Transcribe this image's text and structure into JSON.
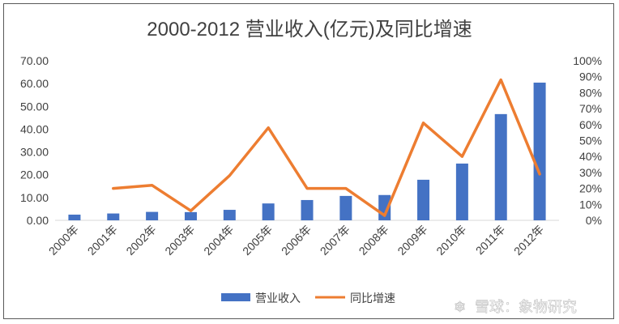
{
  "chart_data": {
    "type": "bar",
    "title": "2000-2012 营业收入(亿元)及同比增速",
    "categories": [
      "2000年",
      "2001年",
      "2002年",
      "2003年",
      "2004年",
      "2005年",
      "2006年",
      "2007年",
      "2008年",
      "2009年",
      "2010年",
      "2011年",
      "2012年"
    ],
    "series": [
      {
        "name": "营业收入",
        "type": "bar",
        "axis": "left",
        "color": "#4472C4",
        "values": [
          2.5,
          3.0,
          3.7,
          3.6,
          4.6,
          7.4,
          8.9,
          10.7,
          11.1,
          17.8,
          24.9,
          46.6,
          60.4
        ]
      },
      {
        "name": "同比增速",
        "type": "line",
        "axis": "right",
        "color": "#ED7D31",
        "values": [
          null,
          0.2,
          0.22,
          0.06,
          0.28,
          0.58,
          0.2,
          0.2,
          0.03,
          0.61,
          0.4,
          0.88,
          0.29
        ]
      }
    ],
    "y_left": {
      "ylim": [
        0,
        70
      ],
      "ticks": [
        "0.00",
        "10.00",
        "20.00",
        "30.00",
        "40.00",
        "50.00",
        "60.00",
        "70.00"
      ]
    },
    "y_right": {
      "ylim": [
        0,
        1
      ],
      "ticks": [
        "0%",
        "10%",
        "20%",
        "30%",
        "40%",
        "50%",
        "60%",
        "70%",
        "80%",
        "90%",
        "100%"
      ]
    },
    "grid": false,
    "legend_position": "bottom"
  },
  "legend": {
    "bar_label": "营业收入",
    "line_label": "同比增速"
  },
  "watermark": {
    "text": "雪球：象物研究",
    "symbol": "❄"
  }
}
